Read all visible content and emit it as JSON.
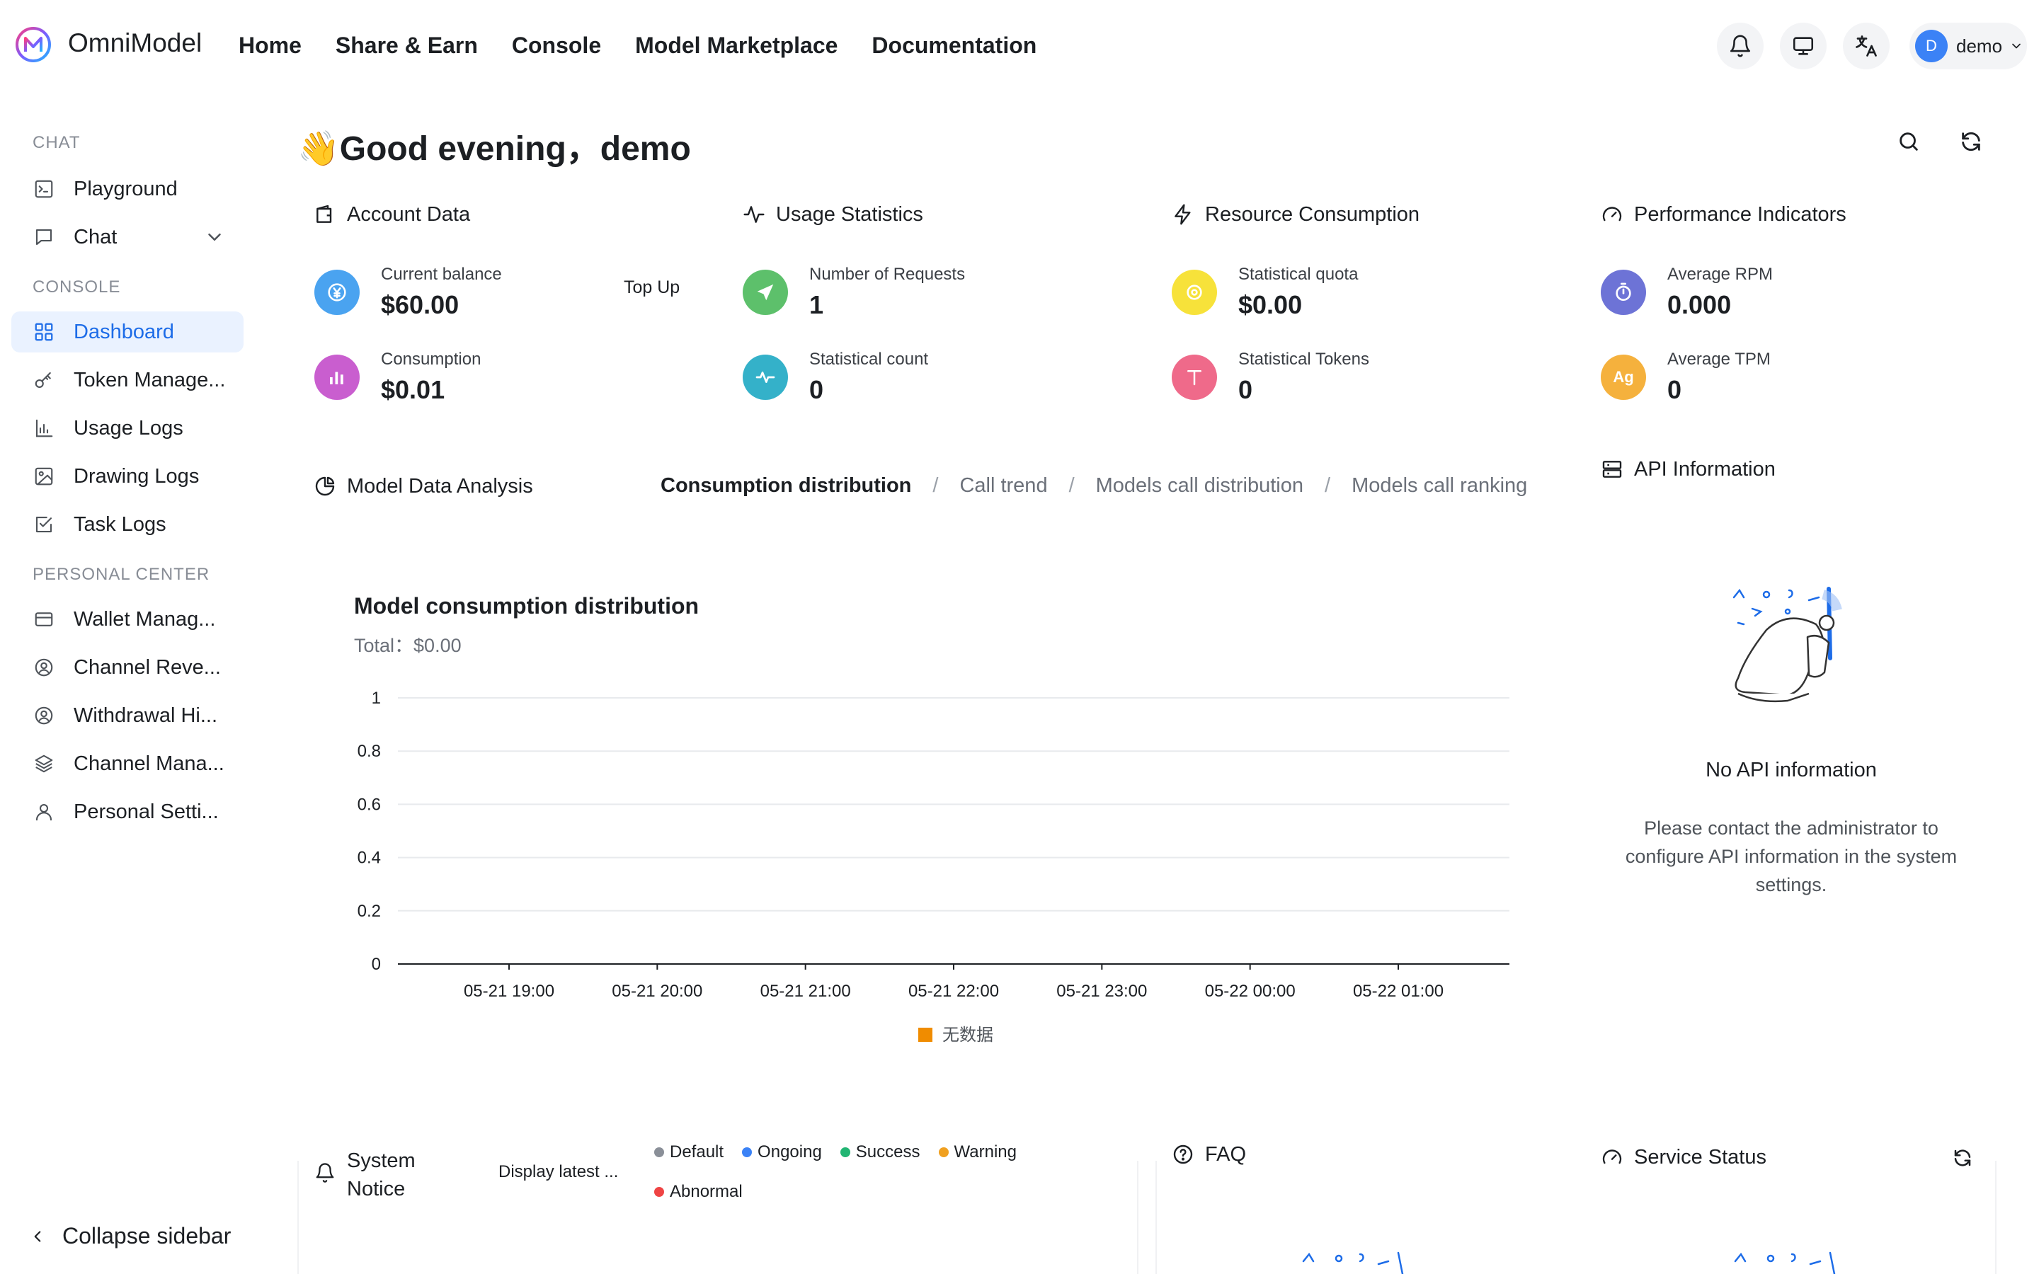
{
  "app": {
    "brand": "OmniModel"
  },
  "topnav": [
    "Home",
    "Share & Earn",
    "Console",
    "Model Marketplace",
    "Documentation"
  ],
  "user": {
    "avatar_letter": "D",
    "name": "demo"
  },
  "sidebar": {
    "sections": {
      "chat": "CHAT",
      "console": "CONSOLE",
      "personal": "PERSONAL CENTER"
    },
    "items": {
      "playground": "Playground",
      "chat": "Chat",
      "dashboard": "Dashboard",
      "token": "Token Manage...",
      "usage": "Usage Logs",
      "drawing": "Drawing Logs",
      "task": "Task Logs",
      "wallet": "Wallet Manag...",
      "channel_rev": "Channel Reve...",
      "withdrawal": "Withdrawal Hi...",
      "channel_mana": "Channel Mana...",
      "personal": "Personal Setti..."
    },
    "collapse": "Collapse sidebar"
  },
  "greeting": "👋Good evening，demo",
  "cards": {
    "account": {
      "title": "Account Data",
      "balance_label": "Current balance",
      "balance_value": "$60.00",
      "topup": "Top Up",
      "consumption_label": "Consumption",
      "consumption_value": "$0.01"
    },
    "usage": {
      "title": "Usage Statistics",
      "requests_label": "Number of Requests",
      "requests_value": "1",
      "count_label": "Statistical count",
      "count_value": "0"
    },
    "resource": {
      "title": "Resource Consumption",
      "quota_label": "Statistical quota",
      "quota_value": "$0.00",
      "tokens_label": "Statistical Tokens",
      "tokens_value": "0"
    },
    "performance": {
      "title": "Performance Indicators",
      "rpm_label": "Average RPM",
      "rpm_value": "0.000",
      "tpm_label": "Average TPM",
      "tpm_value": "0",
      "tpm_badge": "Ag"
    }
  },
  "analysis": {
    "title": "Model Data Analysis",
    "tabs": [
      "Consumption distribution",
      "Call trend",
      "Models call distribution",
      "Models call ranking"
    ],
    "active_tab": 0
  },
  "chart_data": {
    "type": "bar",
    "title": "Model consumption distribution",
    "subtitle": "Total：$0.00",
    "categories": [
      "05-21 19:00",
      "05-21 20:00",
      "05-21 21:00",
      "05-21 22:00",
      "05-21 23:00",
      "05-22 00:00",
      "05-22 01:00"
    ],
    "series": [
      {
        "name": "无数据",
        "values": [
          0,
          0,
          0,
          0,
          0,
          0,
          0
        ],
        "color": "#f08c00"
      }
    ],
    "y_ticks": [
      "0",
      "0.2",
      "0.4",
      "0.6",
      "0.8",
      "1"
    ],
    "ylim": [
      0,
      1
    ],
    "grid": true,
    "legend": "bottom"
  },
  "api_info": {
    "title": "API Information",
    "empty_title": "No API information",
    "empty_desc": "Please contact the administrator to configure API information in the system settings."
  },
  "notice": {
    "title_line1": "System",
    "title_line2": "Notice",
    "display": "Display latest ...",
    "legend": [
      {
        "label": "Default",
        "color": "#8a8f98"
      },
      {
        "label": "Ongoing",
        "color": "#3b82f6"
      },
      {
        "label": "Success",
        "color": "#22b573"
      },
      {
        "label": "Warning",
        "color": "#f0a020"
      },
      {
        "label": "Abnormal",
        "color": "#ef4444"
      }
    ]
  },
  "faq": {
    "title": "FAQ"
  },
  "service": {
    "title": "Service Status"
  },
  "colors": {
    "accent": "#1d6ce8",
    "active_bg": "#eaf2ff"
  }
}
